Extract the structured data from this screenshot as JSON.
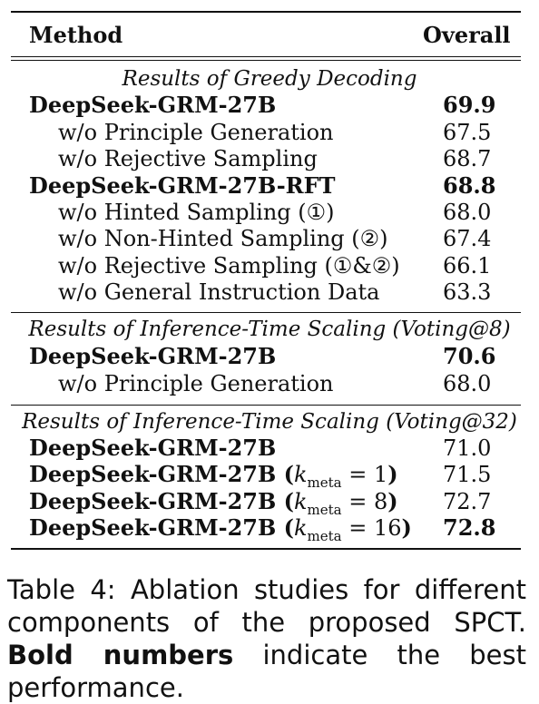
{
  "table": {
    "header": {
      "method": "Method",
      "overall": "Overall"
    },
    "sections": [
      {
        "title": "Results of Greedy Decoding",
        "rows": [
          {
            "method": "DeepSeek-GRM-27B",
            "value": "69.9",
            "bold_name": true,
            "bold_value": true,
            "indent": false
          },
          {
            "method": "w/o Principle Generation",
            "value": "67.5",
            "bold_name": false,
            "bold_value": false,
            "indent": true
          },
          {
            "method": "w/o Rejective Sampling",
            "value": "68.7",
            "bold_name": false,
            "bold_value": false,
            "indent": true
          },
          {
            "method": "DeepSeek-GRM-27B-RFT",
            "value": "68.8",
            "bold_name": true,
            "bold_value": true,
            "indent": false
          },
          {
            "method": "w/o Hinted Sampling (①)",
            "value": "68.0",
            "bold_name": false,
            "bold_value": false,
            "indent": true
          },
          {
            "method": "w/o Non-Hinted Sampling (②)",
            "value": "67.4",
            "bold_name": false,
            "bold_value": false,
            "indent": true
          },
          {
            "method": "w/o Rejective Sampling (①&②)",
            "value": "66.1",
            "bold_name": false,
            "bold_value": false,
            "indent": true
          },
          {
            "method": "w/o General Instruction Data",
            "value": "63.3",
            "bold_name": false,
            "bold_value": false,
            "indent": true
          }
        ]
      },
      {
        "title": "Results of Inference-Time Scaling (Voting@8)",
        "rows": [
          {
            "method": "DeepSeek-GRM-27B",
            "value": "70.6",
            "bold_name": true,
            "bold_value": true,
            "indent": false
          },
          {
            "method": "w/o Principle Generation",
            "value": "68.0",
            "bold_name": false,
            "bold_value": false,
            "indent": true
          }
        ]
      },
      {
        "title": "Results of Inference-Time Scaling (Voting@32)",
        "rows": [
          {
            "method": "DeepSeek-GRM-27B",
            "value": "71.0",
            "bold_name": true,
            "bold_value": false,
            "indent": false
          },
          {
            "method": "DeepSeek-GRM-27B",
            "kmeta": "1",
            "value": "71.5",
            "bold_name": true,
            "bold_value": false,
            "indent": false
          },
          {
            "method": "DeepSeek-GRM-27B",
            "kmeta": "8",
            "value": "72.7",
            "bold_name": true,
            "bold_value": false,
            "indent": false
          },
          {
            "method": "DeepSeek-GRM-27B",
            "kmeta": "16",
            "value": "72.8",
            "bold_name": true,
            "bold_value": true,
            "indent": false
          }
        ]
      }
    ]
  },
  "caption": {
    "prefix": "Table 4:  Ablation studies for different components of the proposed SPCT. ",
    "bold": "Bold numbers",
    "suffix": " indicate the best performance."
  }
}
